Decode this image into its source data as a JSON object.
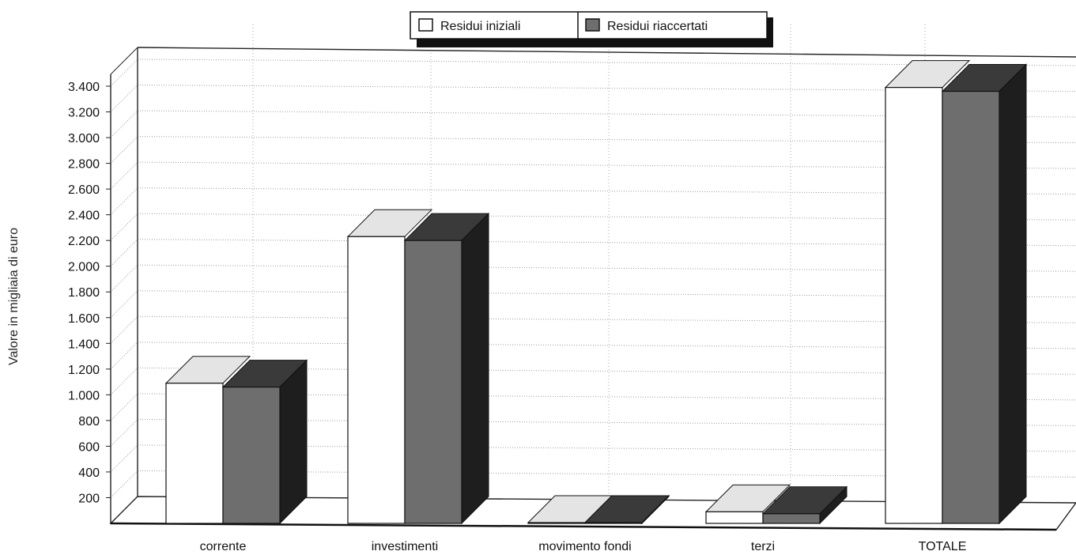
{
  "chart_data": {
    "type": "bar",
    "title": "",
    "xlabel": "",
    "ylabel": "Valore in migliaia di euro",
    "categories": [
      "corrente",
      "investimenti",
      "movimento fondi",
      "terzi",
      "TOTALE"
    ],
    "series": [
      {
        "name": "Residui iniziali",
        "values": [
          1090,
          2230,
          0,
          90,
          3390
        ]
      },
      {
        "name": "Residui riaccertati",
        "values": [
          1060,
          2200,
          0,
          75,
          3360
        ]
      }
    ],
    "y_ticks": [
      "200",
      "400",
      "600",
      "800",
      "1.000",
      "1.200",
      "1.400",
      "1.600",
      "1.800",
      "2.000",
      "2.200",
      "2.400",
      "2.600",
      "2.800",
      "3.000",
      "3.200",
      "3.400"
    ],
    "ylim": [
      0,
      3400
    ],
    "grid": true,
    "legend_position": "top-center",
    "three_d": true,
    "colors": {
      "series1_front": "#ffffff",
      "series1_top": "#e4e4e4",
      "series2_front": "#6e6e6e",
      "series2_top": "#3a3a3a",
      "side": "#1e1e1e"
    }
  }
}
